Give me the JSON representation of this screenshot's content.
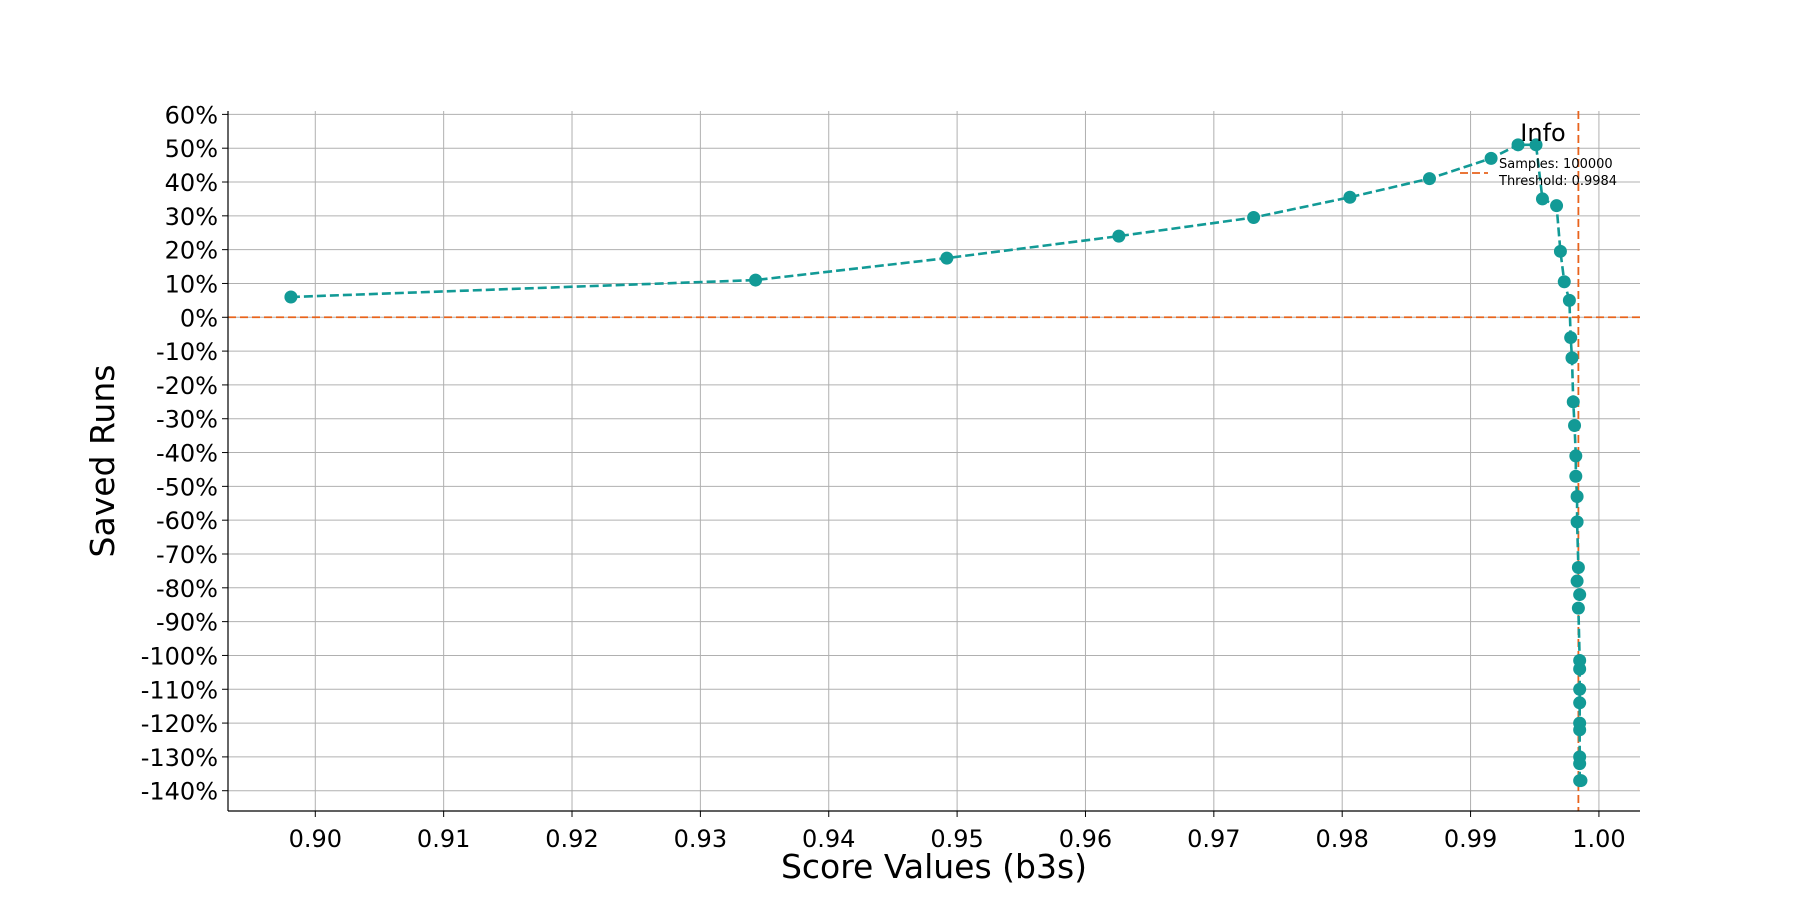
{
  "chart_data": {
    "type": "line",
    "xlabel": "Score Values (b3s)",
    "ylabel": "Saved Runs",
    "xlim": [
      0.8932,
      1.0032
    ],
    "ylim": [
      -146,
      61
    ],
    "xticks": [
      0.9,
      0.91,
      0.92,
      0.93,
      0.94,
      0.95,
      0.96,
      0.97,
      0.98,
      0.99,
      1.0
    ],
    "xtick_labels": [
      "0.90",
      "0.91",
      "0.92",
      "0.93",
      "0.94",
      "0.95",
      "0.96",
      "0.97",
      "0.98",
      "0.99",
      "1.00"
    ],
    "yticks": [
      60,
      50,
      40,
      30,
      20,
      10,
      0,
      -10,
      -20,
      -30,
      -40,
      -50,
      -60,
      -70,
      -80,
      -90,
      -100,
      -110,
      -120,
      -130,
      -140
    ],
    "ytick_labels": [
      "60%",
      "50%",
      "40%",
      "30%",
      "20%",
      "10%",
      "0%",
      "-10%",
      "-20%",
      "-30%",
      "-40%",
      "-50%",
      "-60%",
      "-70%",
      "-80%",
      "-90%",
      "-100%",
      "-110%",
      "-120%",
      "-130%",
      "-140%"
    ],
    "grid": true,
    "series": [
      {
        "color": "#129a96",
        "line_style": "dashed",
        "marker": "circle",
        "x": [
          0.8981,
          0.9343,
          0.9492,
          0.9626,
          0.9731,
          0.9806,
          0.9868,
          0.9916,
          0.9937,
          0.9951,
          0.9956,
          0.9967,
          0.997,
          0.9973,
          0.9977,
          0.9978,
          0.9979,
          0.998,
          0.9981,
          0.9982,
          0.9982,
          0.9983,
          0.9983,
          0.9984,
          0.9983,
          0.9985,
          0.9984,
          0.9985,
          0.9985,
          0.9985,
          0.9985,
          0.9985,
          0.9985,
          0.9985,
          0.9985,
          0.9985,
          0.9986
        ],
        "y": [
          6,
          11,
          17.5,
          24,
          29.5,
          35.5,
          41,
          47,
          51,
          51,
          35,
          33,
          19.5,
          10.5,
          5,
          -6,
          -12,
          -25,
          -32,
          -41,
          -47,
          -53,
          -60.5,
          -74,
          -78,
          -82,
          -86,
          -101.5,
          -104,
          -110,
          -114,
          -120,
          -122,
          -130,
          -132,
          -137,
          -137
        ]
      }
    ],
    "reference_lines": [
      {
        "orientation": "horizontal",
        "value": 0,
        "color": "#e8631c",
        "line_style": "dashed"
      },
      {
        "orientation": "vertical",
        "value": 0.9984,
        "color": "#e8631c",
        "line_style": "dashed"
      }
    ],
    "legend": {
      "title": "Info",
      "placement": "top-right",
      "entries": [
        "Samples: 100000",
        "Threshold: 0.9984"
      ]
    }
  }
}
